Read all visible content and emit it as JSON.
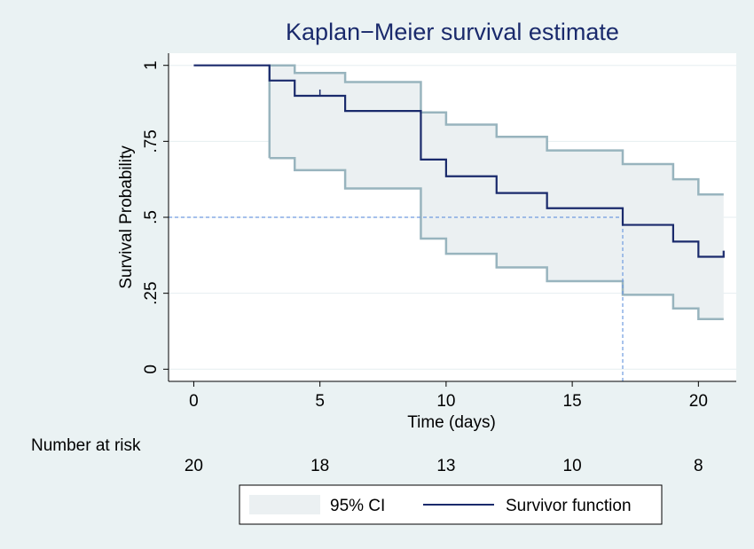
{
  "chart_data": {
    "type": "line",
    "title": "Kaplan−Meier survival estimate",
    "xlabel": "Time (days)",
    "ylabel": "Survival Probability",
    "xlim": [
      -1,
      21.5
    ],
    "ylim": [
      -0.04,
      1.04
    ],
    "x_ticks": [
      0,
      5,
      10,
      15,
      20
    ],
    "x_tick_labels": [
      "0",
      "5",
      "10",
      "15",
      "20"
    ],
    "y_ticks": [
      0,
      0.25,
      0.5,
      0.75,
      1
    ],
    "y_tick_labels": [
      "0",
      ".25",
      ".5",
      ".75",
      "1"
    ],
    "grid": "horizontal",
    "median_survival": {
      "x": 17,
      "y": 0.5
    },
    "survivor": [
      [
        0,
        1
      ],
      [
        3,
        0.95
      ],
      [
        4,
        0.9
      ],
      [
        6,
        0.85
      ],
      [
        9,
        0.69
      ],
      [
        10,
        0.635
      ],
      [
        12,
        0.58
      ],
      [
        14,
        0.53
      ],
      [
        17,
        0.475
      ],
      [
        19,
        0.42
      ],
      [
        20,
        0.37
      ],
      [
        21,
        0.39
      ]
    ],
    "censored": [
      [
        5,
        0.9
      ]
    ],
    "ci_upper": [
      [
        3,
        1.0
      ],
      [
        4,
        0.975
      ],
      [
        6,
        0.945
      ],
      [
        9,
        0.845
      ],
      [
        10,
        0.805
      ],
      [
        12,
        0.765
      ],
      [
        14,
        0.72
      ],
      [
        17,
        0.675
      ],
      [
        19,
        0.625
      ],
      [
        20,
        0.575
      ],
      [
        21,
        0.575
      ]
    ],
    "ci_lower": [
      [
        3,
        0.695
      ],
      [
        4,
        0.655
      ],
      [
        6,
        0.595
      ],
      [
        9,
        0.43
      ],
      [
        10,
        0.38
      ],
      [
        12,
        0.335
      ],
      [
        14,
        0.29
      ],
      [
        17,
        0.245
      ],
      [
        19,
        0.2
      ],
      [
        20,
        0.165
      ],
      [
        21,
        0.165
      ]
    ],
    "risk_table": {
      "label": "Number at risk",
      "times": [
        0,
        5,
        10,
        15,
        20
      ],
      "values": [
        "20",
        "18",
        "13",
        "10",
        "8"
      ]
    },
    "legend": {
      "placement": "bottom",
      "items": [
        {
          "label": "95% CI",
          "swatch": "area"
        },
        {
          "label": "Survivor function",
          "swatch": "line"
        }
      ]
    },
    "colors": {
      "page_bg": "#eaf2f3",
      "plot_bg": "#ffffff",
      "ci_fill": "#ebf0f2",
      "ci_line": "#98b4be",
      "survivor_line": "#1a2a6c",
      "median_line": "#6f9be0",
      "gridline": "#e6eef0",
      "title": "#1a2a6c"
    }
  }
}
